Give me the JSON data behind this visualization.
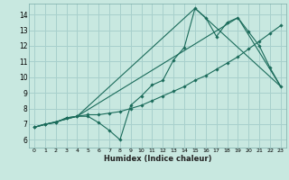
{
  "xlabel": "Humidex (Indice chaleur)",
  "background_color": "#c8e8e0",
  "grid_color": "#a8d0cc",
  "line_color": "#1a6b5a",
  "xlim": [
    -0.5,
    23.5
  ],
  "ylim": [
    5.5,
    14.7
  ],
  "xticks": [
    0,
    1,
    2,
    3,
    4,
    5,
    6,
    7,
    8,
    9,
    10,
    11,
    12,
    13,
    14,
    15,
    16,
    17,
    18,
    19,
    20,
    21,
    22,
    23
  ],
  "yticks": [
    6,
    7,
    8,
    9,
    10,
    11,
    12,
    13,
    14
  ],
  "line1_x": [
    0,
    1,
    2,
    3,
    4,
    5,
    6,
    7,
    8,
    9,
    10,
    11,
    12,
    13,
    14,
    15,
    16,
    17,
    18,
    19,
    20,
    21,
    22,
    23
  ],
  "line1_y": [
    6.8,
    7.0,
    7.1,
    7.4,
    7.5,
    7.5,
    7.1,
    6.6,
    6.0,
    8.2,
    8.8,
    9.5,
    9.8,
    11.1,
    11.9,
    14.4,
    13.8,
    12.6,
    13.5,
    13.8,
    12.9,
    12.0,
    10.6,
    9.4
  ],
  "line2_x": [
    0,
    1,
    2,
    3,
    4,
    5,
    6,
    7,
    8,
    9,
    10,
    11,
    12,
    13,
    14,
    15,
    16,
    17,
    18,
    19,
    20,
    21,
    22,
    23
  ],
  "line2_y": [
    6.8,
    7.0,
    7.1,
    7.4,
    7.5,
    7.6,
    7.6,
    7.7,
    7.8,
    8.0,
    8.2,
    8.5,
    8.8,
    9.1,
    9.4,
    9.8,
    10.1,
    10.5,
    10.9,
    11.3,
    11.8,
    12.3,
    12.8,
    13.3
  ],
  "line3_x": [
    0,
    4,
    15,
    23
  ],
  "line3_y": [
    6.8,
    7.5,
    14.4,
    9.4
  ],
  "line4_x": [
    0,
    4,
    19,
    23
  ],
  "line4_y": [
    6.8,
    7.5,
    13.8,
    9.4
  ]
}
